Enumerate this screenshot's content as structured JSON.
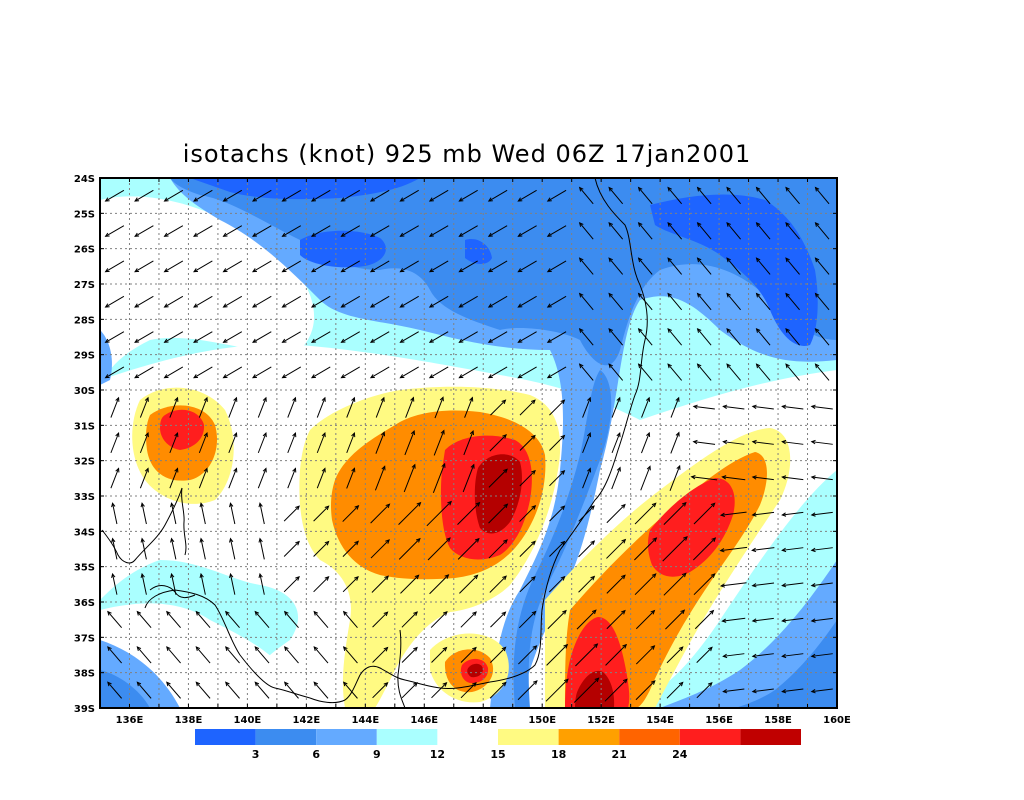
{
  "title": "isotachs (knot) 925 mb Wed 06Z 17jan2001",
  "latitude_labels": [
    "24S",
    "25S",
    "26S",
    "27S",
    "28S",
    "29S",
    "30S",
    "31S",
    "32S",
    "33S",
    "34S",
    "35S",
    "36S",
    "37S",
    "38S",
    "39S"
  ],
  "longitude_labels": [
    "136E",
    "138E",
    "140E",
    "142E",
    "144E",
    "146E",
    "148E",
    "150E",
    "152E",
    "154E",
    "156E",
    "158E",
    "160E"
  ],
  "colorbar": {
    "colors": [
      "#1e64ff",
      "#3c8cf0",
      "#64aaff",
      "#aaffff",
      "#ffffff",
      "#fffa82",
      "#ffa000",
      "#ff6400",
      "#ff1e1e",
      "#c00000"
    ],
    "labels": [
      "3",
      "6",
      "9",
      "12",
      "15",
      "18",
      "21",
      "24"
    ]
  },
  "colors": {
    "dark_blue": "#1e64ff",
    "blue": "#3c8cf0",
    "light_blue": "#64aaff",
    "cyan": "#aaffff",
    "white": "#ffffff",
    "yellow": "#fffa82",
    "orange": "#ff8c00",
    "red_orange": "#ff5a00",
    "red": "#ff1e1e",
    "dark_red": "#b40000"
  }
}
